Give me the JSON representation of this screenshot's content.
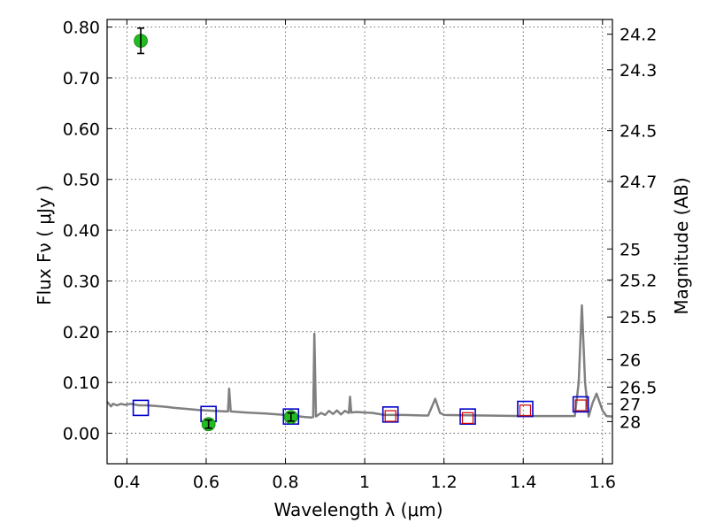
{
  "chart_data": {
    "type": "scatter",
    "title": "",
    "xlabel": "Wavelength  λ (μm)",
    "ylabel": "Flux  Fν  ( μJy )",
    "y2label": "Magnitude (AB)",
    "xlim": [
      0.35,
      1.625
    ],
    "ylim": [
      -0.06,
      0.815
    ],
    "grid": true,
    "x_ticks": [
      0.4,
      0.6,
      0.8,
      1.0,
      1.2,
      1.4,
      1.6
    ],
    "x_tick_labels": [
      "0.4",
      "0.6",
      "0.8",
      "1",
      "1.2",
      "1.4",
      "1.6"
    ],
    "y_ticks": [
      0.0,
      0.1,
      0.2,
      0.3,
      0.4,
      0.5,
      0.6,
      0.7,
      0.8
    ],
    "y_tick_labels": [
      "0.00",
      "0.10",
      "0.20",
      "0.30",
      "0.40",
      "0.50",
      "0.60",
      "0.70",
      "0.80"
    ],
    "magnitude_ticks": [
      {
        "label": "24.2",
        "flux": 0.786
      },
      {
        "label": "24.3",
        "flux": 0.716
      },
      {
        "label": "24.5",
        "flux": 0.596
      },
      {
        "label": "24.7",
        "flux": 0.496
      },
      {
        "label": "25",
        "flux": 0.363
      },
      {
        "label": "25.2",
        "flux": 0.302
      },
      {
        "label": "25.5",
        "flux": 0.229
      },
      {
        "label": "26",
        "flux": 0.145
      },
      {
        "label": "26.5",
        "flux": 0.091
      },
      {
        "label": "27",
        "flux": 0.058
      },
      {
        "label": "28",
        "flux": 0.023
      }
    ],
    "series": [
      {
        "name": "observed",
        "marker": "circle",
        "color": "#22bb22",
        "points": [
          {
            "x": 0.435,
            "y": 0.773,
            "err": 0.025
          },
          {
            "x": 0.606,
            "y": 0.018,
            "err": 0.008
          },
          {
            "x": 0.814,
            "y": 0.032,
            "err": 0.008
          }
        ]
      },
      {
        "name": "model_blue",
        "marker": "square",
        "color": "#0000cc",
        "points": [
          {
            "x": 0.435,
            "y": 0.05
          },
          {
            "x": 0.606,
            "y": 0.038
          },
          {
            "x": 0.814,
            "y": 0.033
          },
          {
            "x": 1.065,
            "y": 0.037
          },
          {
            "x": 1.26,
            "y": 0.033
          },
          {
            "x": 1.405,
            "y": 0.048
          },
          {
            "x": 1.545,
            "y": 0.057
          }
        ]
      },
      {
        "name": "model_red",
        "marker": "square",
        "color": "#cc0000",
        "points": [
          {
            "x": 1.065,
            "y": 0.034
          },
          {
            "x": 1.26,
            "y": 0.03
          },
          {
            "x": 1.405,
            "y": 0.045
          },
          {
            "x": 1.545,
            "y": 0.055
          }
        ]
      },
      {
        "name": "model_spectrum",
        "type": "line",
        "color": "#808080",
        "points": [
          [
            0.35,
            0.062
          ],
          [
            0.36,
            0.053
          ],
          [
            0.365,
            0.058
          ],
          [
            0.375,
            0.055
          ],
          [
            0.385,
            0.058
          ],
          [
            0.395,
            0.056
          ],
          [
            0.41,
            0.058
          ],
          [
            0.43,
            0.055
          ],
          [
            0.45,
            0.055
          ],
          [
            0.47,
            0.054
          ],
          [
            0.5,
            0.052
          ],
          [
            0.52,
            0.05
          ],
          [
            0.55,
            0.048
          ],
          [
            0.58,
            0.046
          ],
          [
            0.6,
            0.045
          ],
          [
            0.62,
            0.044
          ],
          [
            0.65,
            0.043
          ],
          [
            0.655,
            0.043
          ],
          [
            0.658,
            0.088
          ],
          [
            0.662,
            0.043
          ],
          [
            0.7,
            0.041
          ],
          [
            0.75,
            0.039
          ],
          [
            0.8,
            0.036
          ],
          [
            0.85,
            0.032
          ],
          [
            0.865,
            0.031
          ],
          [
            0.87,
            0.032
          ],
          [
            0.873,
            0.196
          ],
          [
            0.877,
            0.033
          ],
          [
            0.89,
            0.04
          ],
          [
            0.9,
            0.036
          ],
          [
            0.91,
            0.044
          ],
          [
            0.92,
            0.038
          ],
          [
            0.93,
            0.045
          ],
          [
            0.94,
            0.037
          ],
          [
            0.95,
            0.044
          ],
          [
            0.96,
            0.04
          ],
          [
            0.963,
            0.072
          ],
          [
            0.966,
            0.041
          ],
          [
            0.98,
            0.042
          ],
          [
            1.0,
            0.041
          ],
          [
            1.02,
            0.04
          ],
          [
            1.05,
            0.036
          ],
          [
            1.1,
            0.036
          ],
          [
            1.15,
            0.035
          ],
          [
            1.16,
            0.035
          ],
          [
            1.178,
            0.068
          ],
          [
            1.19,
            0.04
          ],
          [
            1.2,
            0.036
          ],
          [
            1.3,
            0.035
          ],
          [
            1.4,
            0.034
          ],
          [
            1.5,
            0.034
          ],
          [
            1.53,
            0.034
          ],
          [
            1.54,
            0.1
          ],
          [
            1.548,
            0.252
          ],
          [
            1.556,
            0.1
          ],
          [
            1.565,
            0.033
          ],
          [
            1.575,
            0.06
          ],
          [
            1.585,
            0.078
          ],
          [
            1.6,
            0.045
          ],
          [
            1.61,
            0.034
          ],
          [
            1.625,
            0.033
          ]
        ]
      }
    ]
  }
}
